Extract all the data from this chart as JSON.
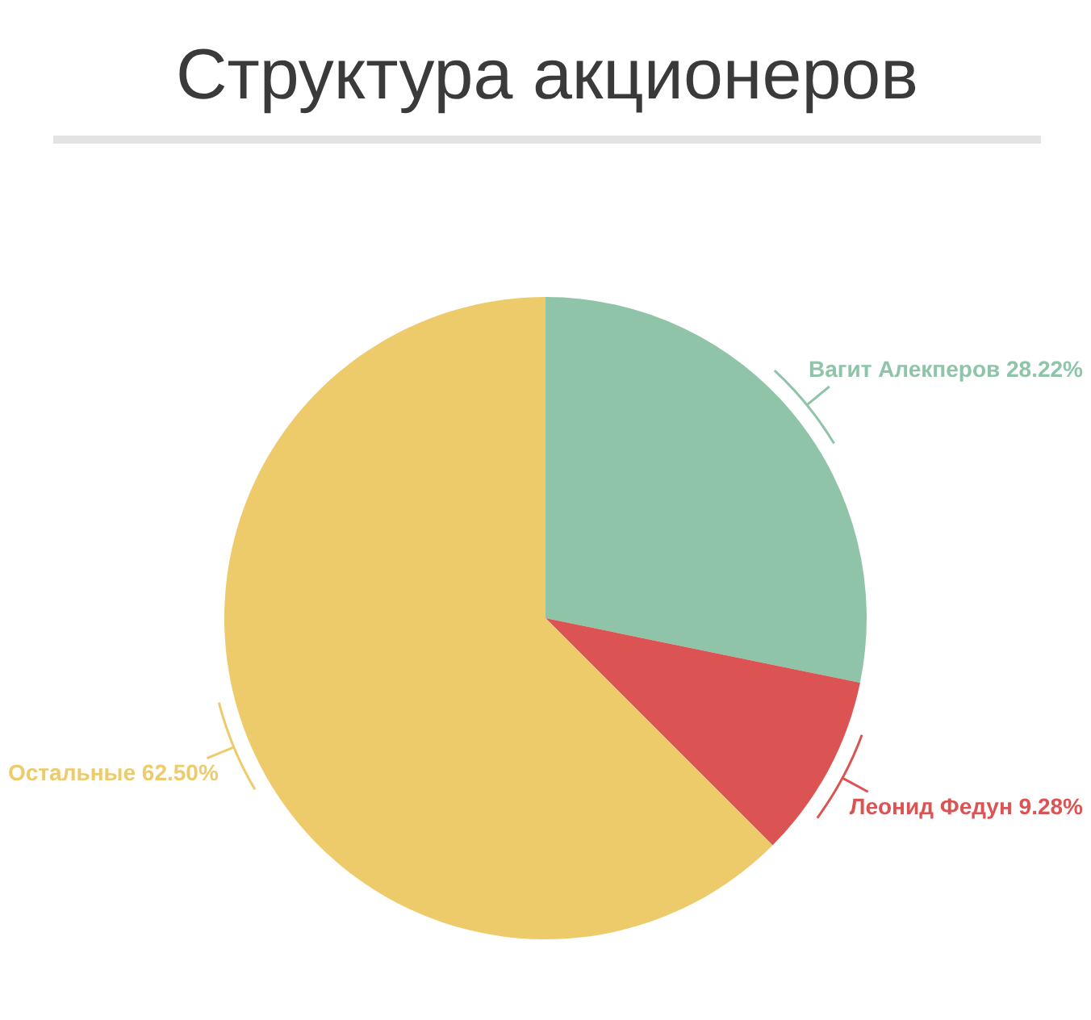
{
  "chart_data": {
    "type": "pie",
    "title": "Структура акционеров",
    "categories": [
      "Вагит Алекперов",
      "Леонид Федун",
      "Остальные"
    ],
    "values": [
      28.22,
      9.28,
      62.5
    ],
    "value_labels": [
      "28.22%",
      "9.28%",
      "62.50%"
    ],
    "colors": [
      "#8fc4a8",
      "#dc5353",
      "#eecb6a"
    ],
    "legend": false
  }
}
